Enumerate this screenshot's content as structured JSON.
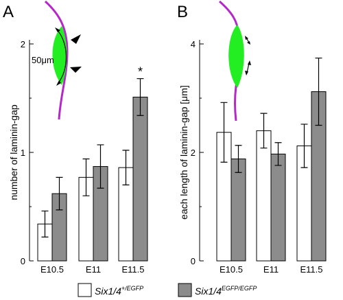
{
  "chart_data": [
    {
      "panel": "A",
      "type": "bar",
      "ylabel": "number of laminin-gap",
      "ylim": [
        0,
        2
      ],
      "yticks": [
        0,
        1,
        2
      ],
      "categories": [
        "E10.5",
        "E11",
        "E11.5"
      ],
      "series": [
        {
          "name": "Six1/4+/EGFP",
          "fill": "#ffffff",
          "values": [
            0.34,
            0.77,
            0.86
          ],
          "errors": [
            0.12,
            0.17,
            0.16
          ]
        },
        {
          "name": "Six1/4EGFP/EGFP",
          "fill": "#8c8c8c",
          "values": [
            0.62,
            0.87,
            1.51
          ],
          "errors": [
            0.15,
            0.2,
            0.17
          ]
        }
      ],
      "annotations": [
        {
          "text": "*",
          "category": "E11.5",
          "series": 1
        }
      ],
      "inset_label": "50μm"
    },
    {
      "panel": "B",
      "type": "bar",
      "ylabel": "each length of laminin-gap [μm]",
      "ylim": [
        0,
        4
      ],
      "yticks": [
        0,
        2,
        4
      ],
      "categories": [
        "E10.5",
        "E11",
        "E11.5"
      ],
      "series": [
        {
          "name": "Six1/4+/EGFP",
          "fill": "#ffffff",
          "values": [
            2.37,
            2.4,
            2.12
          ],
          "errors": [
            0.55,
            0.32,
            0.4
          ]
        },
        {
          "name": "Six1/4EGFP/EGFP",
          "fill": "#8c8c8c",
          "values": [
            1.88,
            1.97,
            3.12
          ],
          "errors": [
            0.25,
            0.21,
            0.62
          ]
        }
      ]
    }
  ],
  "legend": [
    {
      "base": "Six1/4",
      "sup": "+/EGFP",
      "fill": "#ffffff"
    },
    {
      "base": "Six1/4",
      "sup": "EGFP/EGFP",
      "fill": "#8c8c8c"
    }
  ],
  "colors": {
    "membrane": "#b428c8",
    "gap": "#22ee22"
  }
}
